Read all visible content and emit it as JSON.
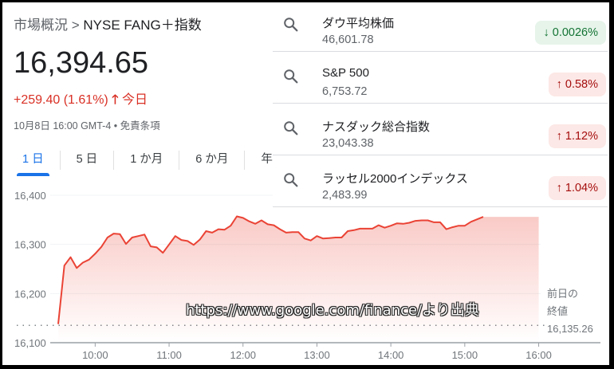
{
  "breadcrumb": {
    "parent": "市場概況",
    "separator": ">",
    "current": "NYSE FANG＋指数"
  },
  "quote": {
    "price": "16,394.65",
    "change": "+259.40 (1.61%)",
    "change_arrow": "arrow-up-icon",
    "change_period": "今日",
    "timestamp": "10月8日 16:00 GMT-4",
    "bullet": "•",
    "disclaimer": "免責条項"
  },
  "tabs": [
    {
      "label": "1 日",
      "active": true
    },
    {
      "label": "5 日",
      "active": false
    },
    {
      "label": "1 か月",
      "active": false
    },
    {
      "label": "6 か月",
      "active": false
    },
    {
      "label": "年",
      "active": false
    }
  ],
  "colors": {
    "up": "#d93025",
    "down": "#137333",
    "accent": "#1a73e8"
  },
  "chart_data": {
    "type": "area",
    "ylim": [
      16100,
      16400
    ],
    "yticks": [
      "16,400",
      "16,300",
      "16,200",
      "16,100"
    ],
    "ytick_values": [
      16400,
      16300,
      16200,
      16100
    ],
    "xticks": [
      "10:00",
      "11:00",
      "12:00",
      "13:00",
      "14:00",
      "15:00",
      "16:00"
    ],
    "xlim": [
      "9:30",
      "16:00"
    ],
    "grid": true,
    "line_color": "#ea4335",
    "previous_close": {
      "label_line1": "前日の",
      "label_line2": "終値",
      "value": 16135.26,
      "value_label": "16,135.26"
    },
    "series": [
      {
        "x_start": "9:30",
        "x_step_minutes": 5,
        "values": [
          16138,
          16257,
          16274,
          16252,
          16263,
          16269,
          16281,
          16295,
          16314,
          16322,
          16321,
          16301,
          16314,
          16317,
          16320,
          16296,
          16294,
          16283,
          16300,
          16317,
          16309,
          16307,
          16299,
          16310,
          16327,
          16324,
          16331,
          16330,
          16338,
          16357,
          16354,
          16347,
          16342,
          16349,
          16341,
          16339,
          16331,
          16324,
          16325,
          16325,
          16312,
          16308,
          16317,
          16312,
          16313,
          16314,
          16314,
          16327,
          16329,
          16332,
          16332,
          16332,
          16339,
          16334,
          16338,
          16343,
          16342,
          16344,
          16348,
          16349,
          16349,
          16345,
          16345,
          16331,
          16335,
          16338,
          16338,
          16346,
          16351,
          16356
        ]
      }
    ]
  },
  "watermark": "https://www.google.com/finance/より出典",
  "suggestions": [
    {
      "name": "ダウ平均株価",
      "value": "46,601.78",
      "change": "0.0026%",
      "direction": "down",
      "arrow": "↓"
    },
    {
      "name": "S&P 500",
      "value": "6,753.72",
      "change": "0.58%",
      "direction": "up",
      "arrow": "↑"
    },
    {
      "name": "ナスダック総合指数",
      "value": "23,043.38",
      "change": "1.12%",
      "direction": "up",
      "arrow": "↑"
    },
    {
      "name": "ラッセル2000インデックス",
      "value": "2,483.99",
      "change": "1.04%",
      "direction": "up",
      "arrow": "↑"
    }
  ]
}
